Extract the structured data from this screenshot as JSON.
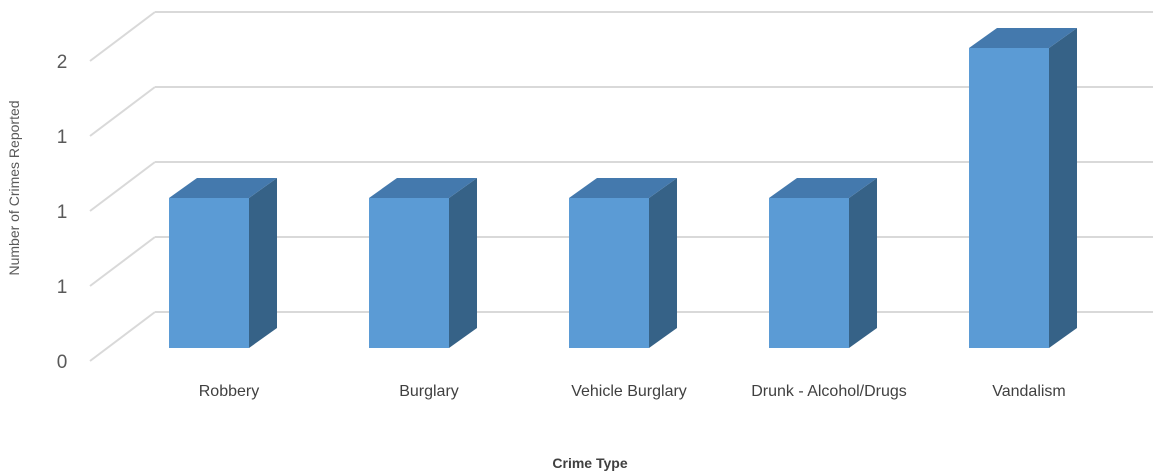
{
  "chart_data": {
    "type": "bar",
    "title": "",
    "xlabel": "Crime Type",
    "ylabel": "Number of Crimes Reported",
    "categories": [
      "Robbery",
      "Burglary",
      "Vehicle Burglary",
      "Drunk - Alcohol/Drugs",
      "Vandalism"
    ],
    "values": [
      1,
      1,
      1,
      1,
      2
    ],
    "yticks": [
      "0",
      "1",
      "1",
      "1",
      "2",
      "2"
    ],
    "ylim": [
      0,
      2.25
    ],
    "grid": true,
    "style": "3d-column",
    "colors": {
      "front": "#5b9bd5",
      "top": "#4479ad",
      "side": "#366287",
      "grid": "#d9d9d9"
    }
  }
}
